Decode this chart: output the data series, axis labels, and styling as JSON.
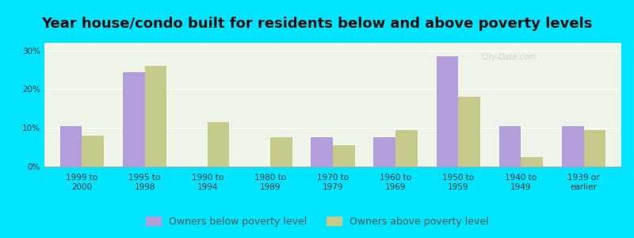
{
  "title": "Year house/condo built for residents below and above poverty levels",
  "categories": [
    "1999 to\n2000",
    "1995 to\n1998",
    "1990 to\n1994",
    "1980 to\n1989",
    "1970 to\n1979",
    "1960 to\n1969",
    "1950 to\n1959",
    "1940 to\n1949",
    "1939 or\nearlier"
  ],
  "below_poverty": [
    10.5,
    24.5,
    0,
    0,
    7.5,
    7.5,
    28.5,
    10.5,
    10.5
  ],
  "above_poverty": [
    8.0,
    26.0,
    11.5,
    7.5,
    5.5,
    9.5,
    18.0,
    2.5,
    9.5
  ],
  "below_color": "#b39ddb",
  "above_color": "#c5c98a",
  "plot_bg_color": "#eef5e8",
  "outer_background": "#00e5ff",
  "ylim": [
    0,
    32
  ],
  "yticks": [
    0,
    10,
    20,
    30
  ],
  "ytick_labels": [
    "0%",
    "10%",
    "20%",
    "30%"
  ],
  "bar_width": 0.35,
  "legend_below": "Owners below poverty level",
  "legend_above": "Owners above poverty level",
  "title_fontsize": 13,
  "tick_fontsize": 7.5,
  "legend_fontsize": 9
}
